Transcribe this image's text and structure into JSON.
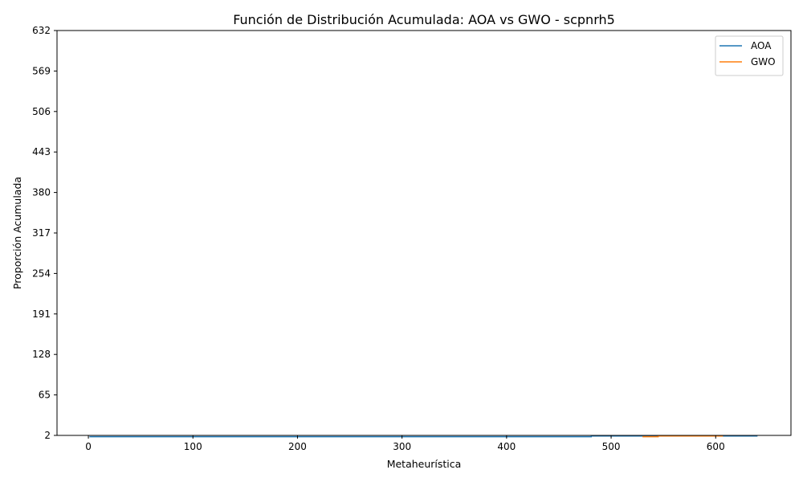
{
  "chart_data": {
    "type": "line",
    "title": "Función de Distribución Acumulada: AOA vs GWO - scpnrh5",
    "xlabel": "Metaheurística",
    "ylabel": "Proporción Acumulada",
    "xlim": [
      -30,
      672
    ],
    "ylim": [
      2,
      632
    ],
    "xticks": [
      0,
      100,
      200,
      300,
      400,
      500,
      600
    ],
    "yticks": [
      2,
      65,
      128,
      191,
      254,
      317,
      380,
      443,
      506,
      569,
      632
    ],
    "grid": false,
    "legend_position": "top-right",
    "series": [
      {
        "name": "AOA",
        "color": "#1f77b4",
        "x": [
          1,
          481,
          481,
          640
        ],
        "y": [
          0.0,
          0.0,
          1.0,
          1.0
        ]
      },
      {
        "name": "GWO",
        "color": "#ff7f0e",
        "x": [
          530,
          545,
          545,
          607
        ],
        "y": [
          0.0,
          0.0,
          1.0,
          1.0
        ]
      }
    ]
  }
}
